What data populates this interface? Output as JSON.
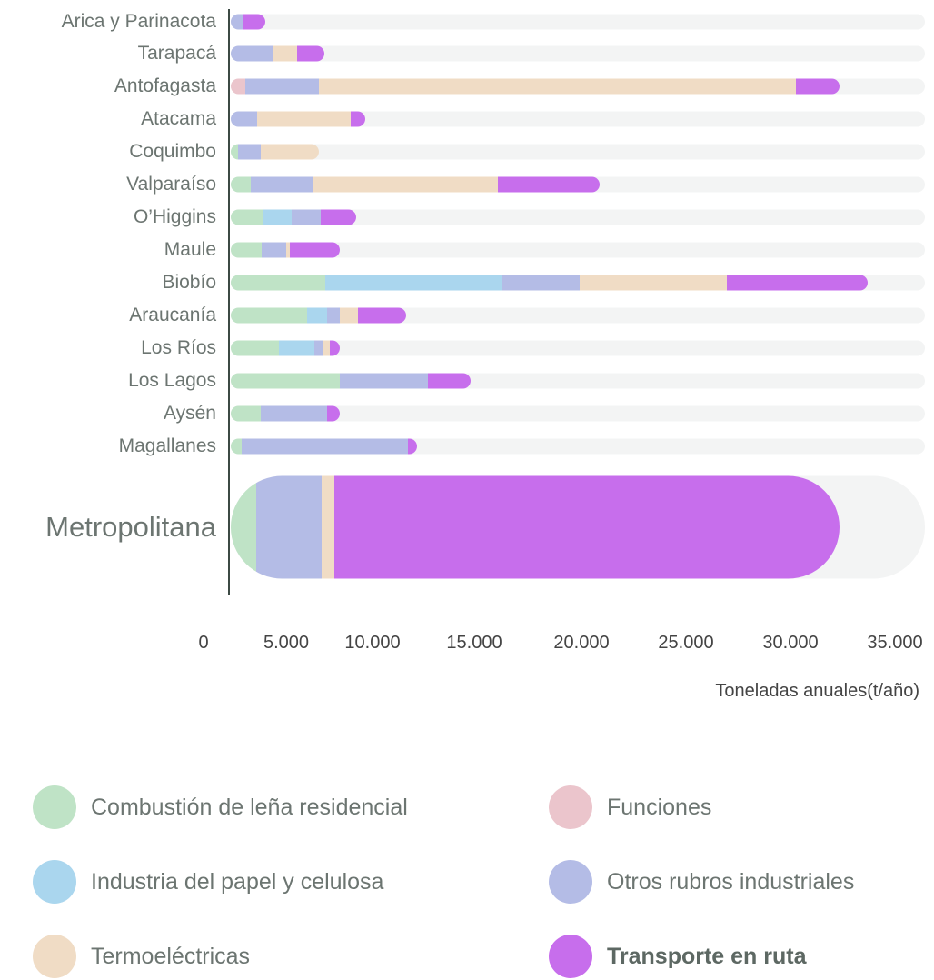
{
  "chart_data": {
    "type": "bar",
    "orientation": "horizontal",
    "stacked": true,
    "xlabel": "Toneladas anuales(t/año)",
    "xlim": [
      0,
      35000
    ],
    "xticks": [
      "0",
      "5.000",
      "10.000",
      "15.000",
      "20.000",
      "25.000",
      "30.000",
      "35.000"
    ],
    "categories": [
      "Arica y Parinacota",
      "Tarapacá",
      "Antofagasta",
      "Atacama",
      "Coquimbo",
      "Valparaíso",
      "O’Higgins",
      "Maule",
      "Biobío",
      "Araucanía",
      "Los Ríos",
      "Los Lagos",
      "Aysén",
      "Magallanes",
      "Metropolitana"
    ],
    "series": [
      {
        "name": "Combustión de leña residencial",
        "color": "#bfe3c6",
        "values": [
          0,
          0,
          0,
          0,
          370,
          1010,
          1650,
          1560,
          4760,
          3850,
          2430,
          5500,
          1510,
          550,
          1280
        ]
      },
      {
        "name": "Funciones",
        "color": "#ebc5cc",
        "values": [
          0,
          0,
          730,
          0,
          0,
          0,
          0,
          0,
          0,
          0,
          0,
          0,
          0,
          0,
          0
        ]
      },
      {
        "name": "Industria del papel y celulosa",
        "color": "#aad6ee",
        "values": [
          0,
          0,
          0,
          0,
          0,
          0,
          1420,
          0,
          8930,
          1010,
          1790,
          0,
          0,
          0,
          0
        ]
      },
      {
        "name": "Otros rubros industriales",
        "color": "#b4bce6",
        "values": [
          640,
          2150,
          3710,
          1330,
          1150,
          3110,
          1470,
          1240,
          3890,
          640,
          460,
          4440,
          3340,
          8380,
          3300
        ]
      },
      {
        "name": "Termoeléctricas",
        "color": "#f0dcc5",
        "values": [
          0,
          1190,
          24040,
          4720,
          2930,
          9340,
          0,
          180,
          7420,
          920,
          320,
          0,
          0,
          0,
          640
        ]
      },
      {
        "name": "Transporte en ruta",
        "color": "#c76eec",
        "values": [
          1100,
          1370,
          2200,
          730,
          0,
          5130,
          1790,
          2520,
          7100,
          2430,
          500,
          2150,
          640,
          460,
          25460
        ]
      }
    ],
    "highlight_category": "Metropolitana",
    "legend": {
      "placement": "bottom",
      "items": [
        {
          "label": "Combustión de leña residencial",
          "color": "#bfe3c6"
        },
        {
          "label": "Funciones",
          "color": "#ebc5cc"
        },
        {
          "label": "Industria del papel y celulosa",
          "color": "#aad6ee"
        },
        {
          "label": "Otros rubros industriales",
          "color": "#b4bce6"
        },
        {
          "label": "Termoeléctricas",
          "color": "#f0dcc5"
        },
        {
          "label": "Transporte en ruta",
          "color": "#c76eec",
          "bold": true
        }
      ]
    }
  }
}
